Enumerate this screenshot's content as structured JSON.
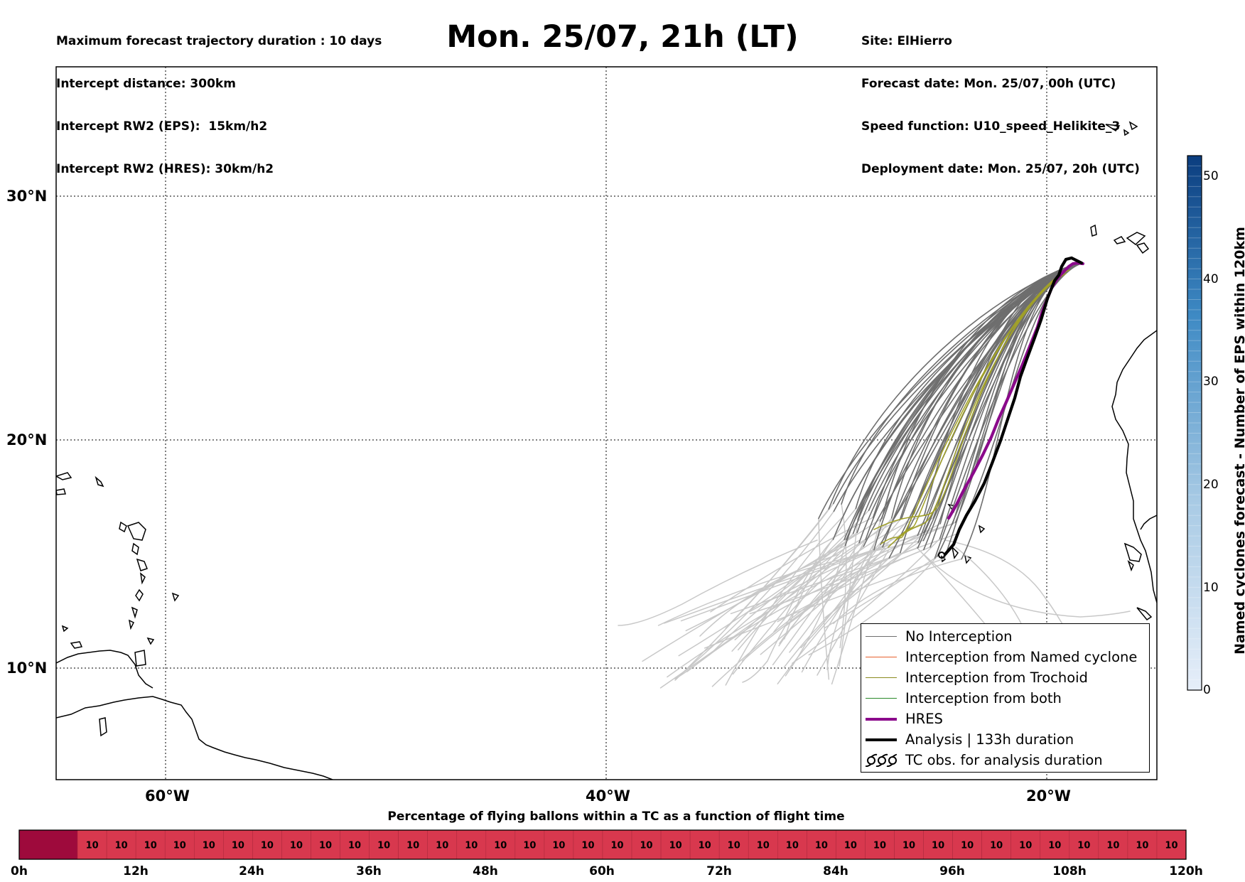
{
  "header": {
    "title": "Mon. 25/07, 21h (LT)",
    "left_lines": [
      "Maximum forecast trajectory duration : 10 days",
      "Intercept distance: 300km",
      "Intercept RW2 (EPS):  15km/h2",
      "Intercept RW2 (HRES): 30km/h2"
    ],
    "right_lines": [
      "Site: ElHierro",
      "Forecast date: Mon. 25/07, 00h (UTC)",
      "Speed function: U10_speed_Helikite_3",
      "Deployment date: Mon. 25/07, 20h (UTC)"
    ]
  },
  "map": {
    "lat_labels": [
      "30°N",
      "20°N",
      "10°N"
    ],
    "lon_labels": [
      "60°W",
      "40°W",
      "20°W"
    ],
    "legend": [
      {
        "label": "No Interception",
        "color": "#6e6e6e",
        "style": "line-thin"
      },
      {
        "label": "Interception from Named cyclone",
        "color": "#e8602c",
        "style": "line-thin"
      },
      {
        "label": "Interception from Trochoid",
        "color": "#8a8a1e",
        "style": "line-thin"
      },
      {
        "label": "Interception from both",
        "color": "#2a8a2a",
        "style": "line-thin"
      },
      {
        "label": "HRES",
        "color": "#8b0a8b",
        "style": "line-thick"
      },
      {
        "label": "Analysis | 133h duration",
        "color": "#000000",
        "style": "line-thick"
      },
      {
        "label": "TC obs. for analysis duration",
        "color": "#000000",
        "style": "tc-symbol"
      }
    ],
    "colors": {
      "no_interception": "#6e6e6e",
      "beyond": "#c8c8c8",
      "trochoid": "#a0a028",
      "hres": "#8b0a8b",
      "analysis": "#000000"
    }
  },
  "colorbar": {
    "label": "Named cyclones forecast - Number of EPS within 120km",
    "ticks": [
      "0",
      "10",
      "20",
      "30",
      "40",
      "50"
    ],
    "min": 0,
    "max": 52
  },
  "bottom_bar": {
    "title": "Percentage of flying ballons within a TC as a function of flight time",
    "cell_value": "10",
    "time_ticks": [
      "0h",
      "12h",
      "24h",
      "36h",
      "48h",
      "60h",
      "72h",
      "84h",
      "96h",
      "108h",
      "120h"
    ]
  }
}
